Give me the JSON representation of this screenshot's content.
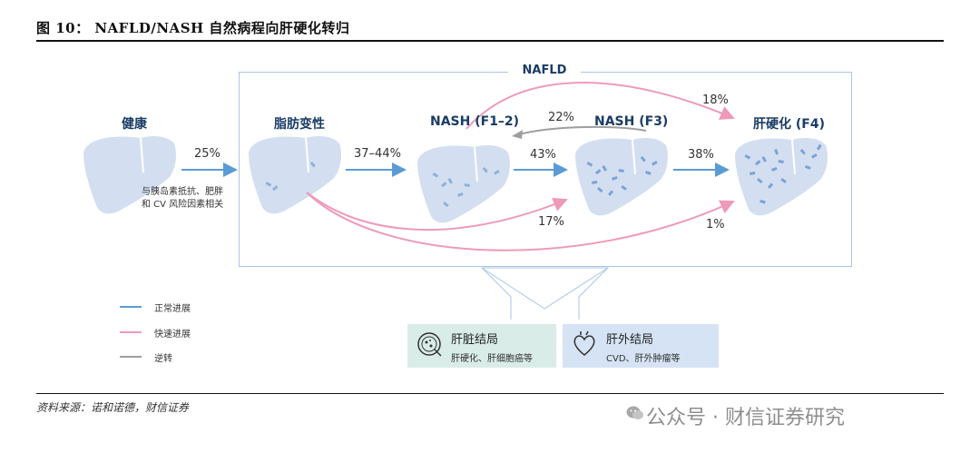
{
  "figure": {
    "title": "图 10： NAFLD/NASH 自然病程向肝硬化转归",
    "group_label": "NAFLD",
    "stages": [
      {
        "id": "healthy",
        "label": "健康"
      },
      {
        "id": "steatosis",
        "label": "脂肪变性"
      },
      {
        "id": "nash_f12",
        "label": "NASH (F1–2)"
      },
      {
        "id": "nash_f3",
        "label": "NASH (F3)"
      },
      {
        "id": "cirrhosis",
        "label": "肝硬化 (F4)"
      }
    ],
    "transitions": [
      {
        "from": "healthy",
        "to": "steatosis",
        "type": "normal",
        "label": "25%"
      },
      {
        "from": "steatosis",
        "to": "nash_f12",
        "type": "normal",
        "label": "37–44%"
      },
      {
        "from": "nash_f12",
        "to": "nash_f3",
        "type": "normal",
        "label": "43%"
      },
      {
        "from": "nash_f3",
        "to": "nash_f12",
        "type": "reverse",
        "label": "22%"
      },
      {
        "from": "nash_f3",
        "to": "cirrhosis",
        "type": "normal",
        "label": "38%"
      },
      {
        "from": "nash_f12",
        "to": "cirrhosis",
        "type": "rapid",
        "label": "18%"
      },
      {
        "from": "steatosis",
        "to": "nash_f3",
        "type": "rapid",
        "label": "17%"
      },
      {
        "from": "steatosis",
        "to": "cirrhosis",
        "type": "rapid",
        "label": "1%"
      }
    ],
    "note_lines": [
      "与胰岛素抵抗、肥胖",
      "和 CV 风险因素相关"
    ],
    "legend": [
      {
        "label": "正常进展",
        "color": "#5b9bd5"
      },
      {
        "label": "快速进展",
        "color": "#ee9ab8"
      },
      {
        "label": "逆转",
        "color": "#9e9e9e"
      }
    ],
    "outcomes": [
      {
        "title": "肝脏结局",
        "subtitle": "肝硬化、肝细胞癌等",
        "bg": "#d9ece8"
      },
      {
        "title": "肝外结局",
        "subtitle": "CVD、肝外肿瘤等",
        "bg": "#d5e3f4"
      }
    ]
  },
  "source": "资料来源：诺和诺德，财信证券",
  "watermark": "公众号 · 财信证券研究"
}
